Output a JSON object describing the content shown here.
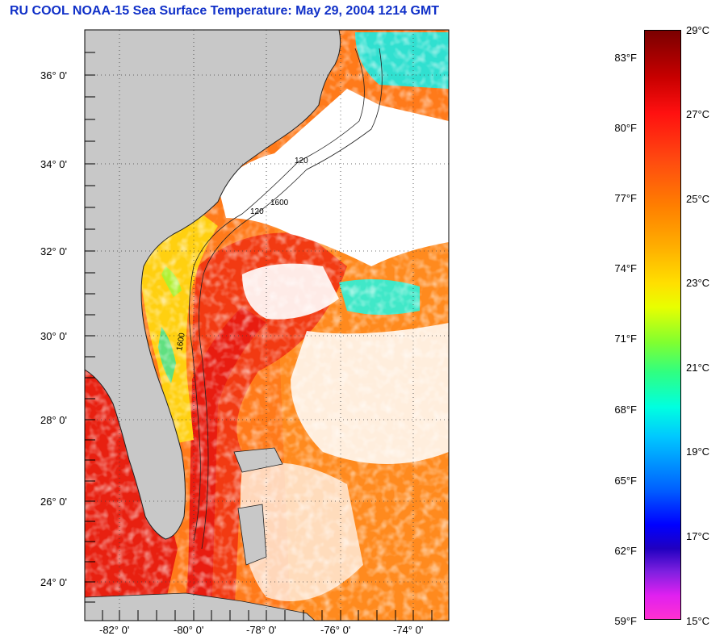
{
  "title": "RU COOL  NOAA-15  Sea Surface Temperature:  May 29, 2004 1214 GMT",
  "map": {
    "lat_labels": [
      "36° 0'",
      "34° 0'",
      "32° 0'",
      "30° 0'",
      "28° 0'",
      "26° 0'",
      "24° 0'"
    ],
    "lon_labels": [
      "-82° 0'",
      "-80° 0'",
      "-78° 0'",
      "-76° 0'",
      "-74° 0'"
    ],
    "contour_labels": [
      "120",
      "120",
      "1600",
      "1600"
    ],
    "colors": {
      "land": "#c8c8c8",
      "cloud": "#ffffff",
      "warm": "#ff5a10",
      "hot": "#e81010",
      "coastal": "#ffe000"
    }
  },
  "colorbar": {
    "fahrenheit": [
      "83°F",
      "80°F",
      "77°F",
      "74°F",
      "71°F",
      "68°F",
      "65°F",
      "62°F",
      "59°F"
    ],
    "celsius": [
      "29°C",
      "27°C",
      "25°C",
      "23°C",
      "21°C",
      "19°C",
      "17°C",
      "15°C"
    ]
  }
}
